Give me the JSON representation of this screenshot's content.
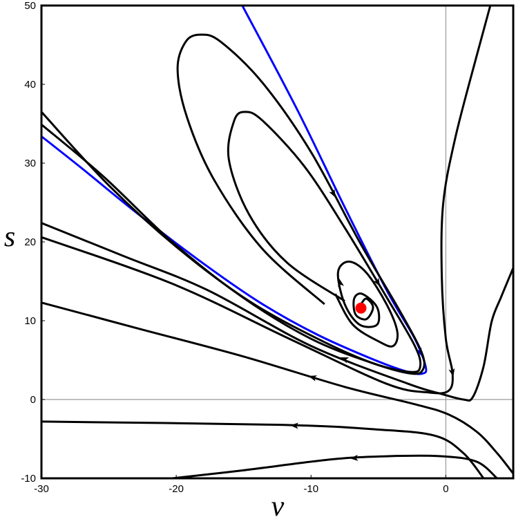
{
  "chart_data": {
    "type": "line",
    "xlabel": "v",
    "ylabel": "s",
    "xlim": [
      -30,
      5
    ],
    "ylim": [
      -10,
      50
    ],
    "xticks": [
      -30,
      -20,
      -10,
      0
    ],
    "yticks": [
      -10,
      0,
      10,
      20,
      30,
      40,
      50
    ],
    "zero_lines": true,
    "series": [
      {
        "color": "#0000ff",
        "mode": "line",
        "x": [
          -15.1,
          -11.0,
          -7.5,
          -4.4,
          -2.3,
          -1.5,
          -1.7,
          -2.8,
          -5.4,
          -9.5,
          -13.6,
          -17.7,
          -22.8,
          -26.9,
          -30.0
        ],
        "y": [
          50.0,
          36.7,
          24.4,
          13.9,
          7.7,
          4.2,
          3.3,
          3.5,
          5.1,
          8.2,
          12.1,
          16.9,
          23.5,
          29.2,
          33.4
        ]
      },
      {
        "color": "#000000",
        "mode": "line",
        "x": [
          -9.0,
          -13.6,
          -17.2,
          -19.2,
          -19.9,
          -19.3,
          -18.2,
          -16.7,
          -13.6,
          -10.0,
          -6.4,
          -3.4,
          -1.8,
          -1.7,
          -2.6,
          -5.4,
          -10.0,
          -15.1,
          -20.3,
          -25.4,
          -30.0
        ],
        "y": [
          12.1,
          19.1,
          27.9,
          35.8,
          41.9,
          45.4,
          46.3,
          45.4,
          40.2,
          31.4,
          20.0,
          11.2,
          6.0,
          3.8,
          3.3,
          4.6,
          7.7,
          13.0,
          20.0,
          28.3,
          34.9
        ]
      },
      {
        "color": "#000000",
        "mode": "line",
        "x": [
          -7.5,
          -11.8,
          -14.6,
          -16.1,
          -15.7,
          -14.9,
          -13.6,
          -10.5,
          -7.5,
          -4.4,
          -2.3,
          -1.9,
          -2.6,
          -5.4,
          -9.5,
          -14.6,
          -19.8,
          -24.9,
          -30.0
        ],
        "y": [
          12.5,
          17.4,
          23.5,
          30.5,
          35.4,
          36.5,
          35.4,
          29.6,
          21.8,
          13.0,
          6.8,
          4.2,
          3.5,
          4.6,
          7.7,
          12.5,
          19.1,
          27.0,
          36.5
        ]
      },
      {
        "color": "#000000",
        "mode": "line",
        "x": [
          -6.3,
          -5.9,
          -5.4,
          -5.9,
          -6.7,
          -6.8,
          -6.2,
          -5.1,
          -5.1,
          -6.4,
          -7.5,
          -8.0,
          -7.2,
          -5.9,
          -4.4,
          -3.6,
          -3.9,
          -4.9,
          -6.9,
          -8.2
        ],
        "y": [
          12.1,
          12.8,
          11.7,
          10.2,
          10.8,
          12.8,
          13.4,
          11.7,
          9.5,
          9.5,
          12.1,
          16.1,
          17.5,
          16.1,
          12.1,
          8.6,
          6.8,
          7.3,
          9.5,
          13.4
        ]
      },
      {
        "color": "#000000",
        "mode": "line",
        "x": [
          5.0,
          4.1,
          3.4,
          2.8,
          2.0,
          1.3,
          -0.3,
          -2.8,
          -10.0,
          -17.7,
          -23.9,
          -30.0
        ],
        "y": [
          16.7,
          13.0,
          9.9,
          4.2,
          0.3,
          0.0,
          0.7,
          2.0,
          6.8,
          13.9,
          18.2,
          22.4
        ]
      },
      {
        "color": "#000000",
        "mode": "line",
        "x": [
          3.3,
          2.3,
          0.7,
          -0.2,
          -0.3,
          0.0,
          0.5,
          0.2,
          -1.3,
          -4.4,
          -11.6,
          -20.3,
          -30.0
        ],
        "y": [
          50.0,
          43.7,
          33.2,
          24.8,
          15.6,
          7.7,
          3.3,
          1.1,
          0.9,
          2.0,
          7.7,
          14.7,
          20.6
        ]
      },
      {
        "color": "#000000",
        "mode": "line",
        "x": [
          5.0,
          3.8,
          2.3,
          0.2,
          -2.3,
          -7.5,
          -15.1,
          -22.8,
          -30.0
        ],
        "y": [
          -9.4,
          -6.8,
          -4.1,
          -1.9,
          -0.6,
          1.6,
          5.5,
          9.0,
          12.3
        ]
      },
      {
        "color": "#000000",
        "mode": "line",
        "x": [
          2.8,
          1.3,
          -0.8,
          -5.1,
          -12.6,
          -30.0
        ],
        "y": [
          -10.0,
          -6.8,
          -4.6,
          -3.8,
          -3.2,
          -2.8
        ]
      },
      {
        "color": "#000000",
        "mode": "line",
        "x": [
          3.8,
          2.3,
          -0.3,
          -4.4,
          -8.5,
          -15.1,
          -20.3
        ],
        "y": [
          -10.0,
          -7.9,
          -7.2,
          -7.2,
          -7.6,
          -9.0,
          -10.0
        ]
      },
      {
        "color": "#ff0000",
        "mode": "marker",
        "x": [
          -6.3
        ],
        "y": [
          11.6
        ]
      }
    ]
  }
}
